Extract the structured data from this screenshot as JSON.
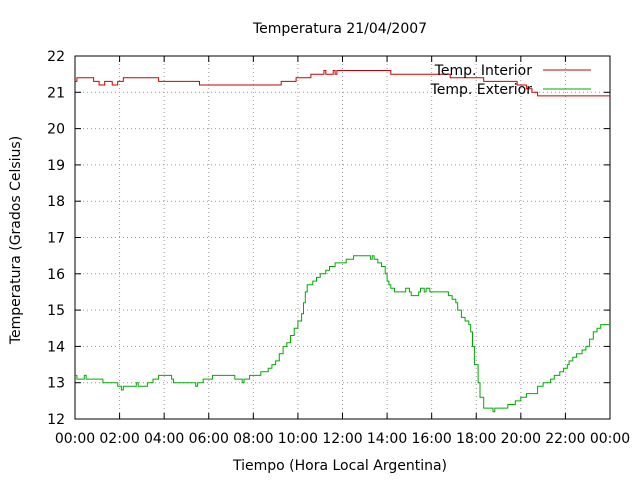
{
  "chart_data": {
    "type": "line",
    "title": "Temperatura 21/04/2007",
    "xlabel": "Tiempo (Hora Local Argentina)",
    "ylabel": "Temperatura (Grados Celsius)",
    "xlim": [
      "00:00",
      "24:00"
    ],
    "ylim": [
      12,
      22
    ],
    "x_ticks": [
      "00:00",
      "02:00",
      "04:00",
      "06:00",
      "08:00",
      "10:00",
      "12:00",
      "14:00",
      "16:00",
      "18:00",
      "20:00",
      "22:00",
      "00:00"
    ],
    "y_ticks": [
      "12",
      "13",
      "14",
      "15",
      "16",
      "17",
      "18",
      "19",
      "20",
      "21",
      "22"
    ],
    "grid": true,
    "legend_position": "top-right",
    "series": [
      {
        "name": "Temp. Interior",
        "color": "#cc0000",
        "points": [
          [
            "00:00",
            21.3
          ],
          [
            "00:05",
            21.4
          ],
          [
            "00:45",
            21.4
          ],
          [
            "00:50",
            21.3
          ],
          [
            "01:00",
            21.3
          ],
          [
            "01:05",
            21.2
          ],
          [
            "01:15",
            21.2
          ],
          [
            "01:20",
            21.3
          ],
          [
            "01:35",
            21.3
          ],
          [
            "01:40",
            21.2
          ],
          [
            "01:50",
            21.2
          ],
          [
            "01:55",
            21.3
          ],
          [
            "02:05",
            21.3
          ],
          [
            "02:10",
            21.4
          ],
          [
            "03:40",
            21.4
          ],
          [
            "03:45",
            21.3
          ],
          [
            "05:30",
            21.3
          ],
          [
            "05:35",
            21.2
          ],
          [
            "09:10",
            21.2
          ],
          [
            "09:15",
            21.3
          ],
          [
            "09:50",
            21.3
          ],
          [
            "09:55",
            21.4
          ],
          [
            "10:30",
            21.4
          ],
          [
            "10:35",
            21.5
          ],
          [
            "11:05",
            21.5
          ],
          [
            "11:10",
            21.6
          ],
          [
            "11:15",
            21.5
          ],
          [
            "11:30",
            21.5
          ],
          [
            "11:35",
            21.6
          ],
          [
            "11:40",
            21.5
          ],
          [
            "11:45",
            21.6
          ],
          [
            "14:05",
            21.6
          ],
          [
            "14:10",
            21.5
          ],
          [
            "16:45",
            21.5
          ],
          [
            "16:50",
            21.4
          ],
          [
            "18:15",
            21.4
          ],
          [
            "18:20",
            21.3
          ],
          [
            "19:45",
            21.3
          ],
          [
            "19:50",
            21.2
          ],
          [
            "20:10",
            21.2
          ],
          [
            "20:15",
            21.1
          ],
          [
            "20:25",
            21.1
          ],
          [
            "20:30",
            21.0
          ],
          [
            "20:40",
            21.0
          ],
          [
            "20:45",
            20.9
          ],
          [
            "24:00",
            20.9
          ]
        ]
      },
      {
        "name": "Temp. Exterior",
        "color": "#00aa00",
        "points": [
          [
            "00:00",
            13.2
          ],
          [
            "00:05",
            13.1
          ],
          [
            "00:20",
            13.1
          ],
          [
            "00:25",
            13.2
          ],
          [
            "00:30",
            13.1
          ],
          [
            "01:10",
            13.1
          ],
          [
            "01:15",
            13.0
          ],
          [
            "01:50",
            13.0
          ],
          [
            "01:55",
            12.9
          ],
          [
            "02:00",
            12.9
          ],
          [
            "02:05",
            12.8
          ],
          [
            "02:10",
            12.9
          ],
          [
            "02:40",
            12.9
          ],
          [
            "02:45",
            13.0
          ],
          [
            "02:50",
            12.9
          ],
          [
            "03:10",
            12.9
          ],
          [
            "03:15",
            13.0
          ],
          [
            "03:25",
            13.0
          ],
          [
            "03:30",
            13.1
          ],
          [
            "03:40",
            13.1
          ],
          [
            "03:45",
            13.2
          ],
          [
            "04:15",
            13.2
          ],
          [
            "04:20",
            13.1
          ],
          [
            "04:25",
            13.0
          ],
          [
            "05:20",
            13.0
          ],
          [
            "05:25",
            12.9
          ],
          [
            "05:30",
            13.0
          ],
          [
            "05:40",
            13.0
          ],
          [
            "05:45",
            13.1
          ],
          [
            "06:05",
            13.1
          ],
          [
            "06:10",
            13.2
          ],
          [
            "07:05",
            13.2
          ],
          [
            "07:10",
            13.1
          ],
          [
            "07:25",
            13.1
          ],
          [
            "07:30",
            13.0
          ],
          [
            "07:35",
            13.1
          ],
          [
            "07:45",
            13.1
          ],
          [
            "07:50",
            13.2
          ],
          [
            "08:15",
            13.2
          ],
          [
            "08:20",
            13.3
          ],
          [
            "08:35",
            13.3
          ],
          [
            "08:40",
            13.4
          ],
          [
            "08:50",
            13.5
          ],
          [
            "09:00",
            13.6
          ],
          [
            "09:10",
            13.8
          ],
          [
            "09:20",
            14.0
          ],
          [
            "09:30",
            14.1
          ],
          [
            "09:40",
            14.3
          ],
          [
            "09:50",
            14.5
          ],
          [
            "10:00",
            14.7
          ],
          [
            "10:10",
            14.9
          ],
          [
            "10:15",
            15.2
          ],
          [
            "10:20",
            15.5
          ],
          [
            "10:25",
            15.7
          ],
          [
            "10:40",
            15.8
          ],
          [
            "10:50",
            15.9
          ],
          [
            "11:00",
            16.0
          ],
          [
            "11:15",
            16.1
          ],
          [
            "11:25",
            16.2
          ],
          [
            "11:40",
            16.3
          ],
          [
            "12:00",
            16.3
          ],
          [
            "12:10",
            16.4
          ],
          [
            "12:30",
            16.5
          ],
          [
            "13:10",
            16.5
          ],
          [
            "13:15",
            16.4
          ],
          [
            "13:20",
            16.5
          ],
          [
            "13:25",
            16.4
          ],
          [
            "13:35",
            16.3
          ],
          [
            "13:45",
            16.2
          ],
          [
            "13:55",
            16.0
          ],
          [
            "14:00",
            15.8
          ],
          [
            "14:05",
            15.7
          ],
          [
            "14:10",
            15.6
          ],
          [
            "14:20",
            15.5
          ],
          [
            "14:45",
            15.5
          ],
          [
            "14:50",
            15.6
          ],
          [
            "15:00",
            15.5
          ],
          [
            "15:05",
            15.4
          ],
          [
            "15:20",
            15.4
          ],
          [
            "15:25",
            15.5
          ],
          [
            "15:30",
            15.6
          ],
          [
            "15:40",
            15.5
          ],
          [
            "15:45",
            15.6
          ],
          [
            "15:55",
            15.5
          ],
          [
            "16:40",
            15.5
          ],
          [
            "16:45",
            15.4
          ],
          [
            "16:55",
            15.3
          ],
          [
            "17:05",
            15.2
          ],
          [
            "17:10",
            15.0
          ],
          [
            "17:20",
            14.8
          ],
          [
            "17:30",
            14.7
          ],
          [
            "17:40",
            14.6
          ],
          [
            "17:45",
            14.4
          ],
          [
            "17:50",
            14.0
          ],
          [
            "17:55",
            13.5
          ],
          [
            "18:05",
            13.0
          ],
          [
            "18:10",
            12.6
          ],
          [
            "18:20",
            12.3
          ],
          [
            "18:40",
            12.3
          ],
          [
            "18:45",
            12.2
          ],
          [
            "18:50",
            12.3
          ],
          [
            "19:20",
            12.3
          ],
          [
            "19:25",
            12.4
          ],
          [
            "19:35",
            12.4
          ],
          [
            "19:45",
            12.5
          ],
          [
            "20:00",
            12.6
          ],
          [
            "20:15",
            12.7
          ],
          [
            "20:40",
            12.7
          ],
          [
            "20:45",
            12.9
          ],
          [
            "21:00",
            13.0
          ],
          [
            "21:20",
            13.1
          ],
          [
            "21:30",
            13.2
          ],
          [
            "21:45",
            13.3
          ],
          [
            "21:55",
            13.4
          ],
          [
            "22:05",
            13.5
          ],
          [
            "22:10",
            13.6
          ],
          [
            "22:20",
            13.7
          ],
          [
            "22:30",
            13.8
          ],
          [
            "22:45",
            13.9
          ],
          [
            "22:55",
            14.0
          ],
          [
            "23:05",
            14.2
          ],
          [
            "23:15",
            14.4
          ],
          [
            "23:25",
            14.5
          ],
          [
            "23:35",
            14.6
          ],
          [
            "24:00",
            14.6
          ]
        ]
      }
    ]
  }
}
